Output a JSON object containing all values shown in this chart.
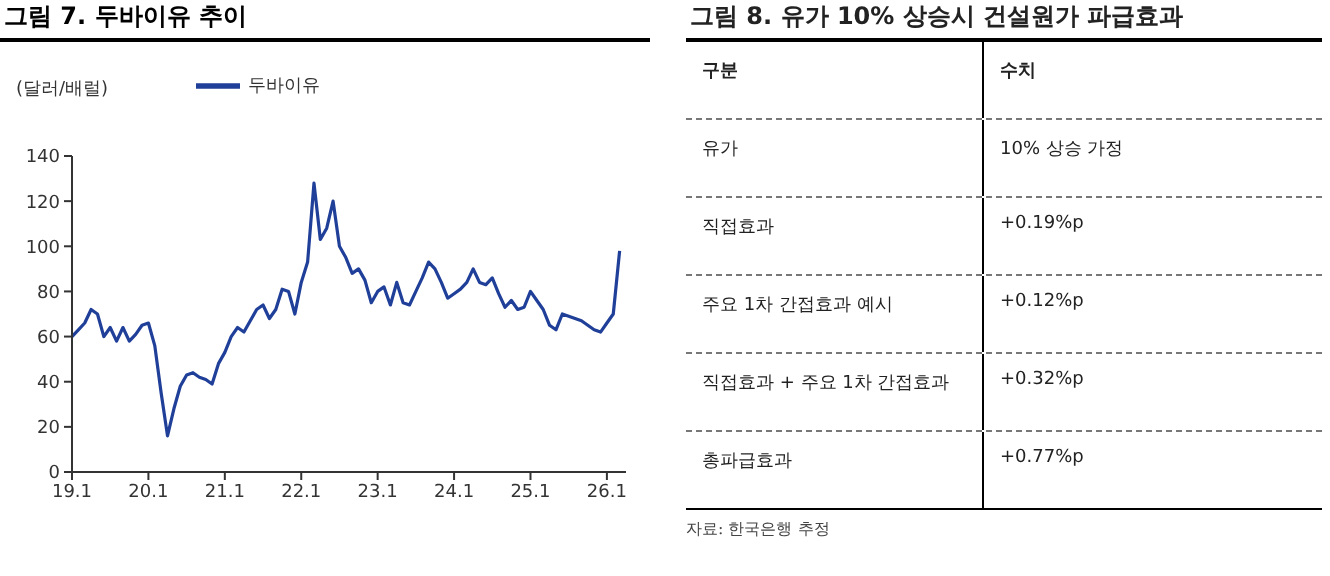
{
  "chart_data": [
    {
      "type": "line",
      "title": "그림 7. 두바이유 추이",
      "ylabel": "(달러/배럴)",
      "legend": "top left",
      "grid": false,
      "marker": "none",
      "line_style": "solid",
      "ylim": [
        0,
        140
      ],
      "yticks": [
        0,
        20,
        40,
        60,
        80,
        100,
        120,
        140
      ],
      "categories": [
        "19.1",
        null,
        null,
        null,
        null,
        null,
        null,
        null,
        null,
        null,
        null,
        null,
        "20.1",
        null,
        null,
        null,
        null,
        null,
        null,
        null,
        null,
        null,
        null,
        null,
        "21.1",
        null,
        null,
        null,
        null,
        null,
        null,
        null,
        null,
        null,
        null,
        null,
        "22.1",
        null,
        null,
        null,
        null,
        null,
        null,
        null,
        null,
        null,
        null,
        null,
        "23.1",
        null,
        null,
        null,
        null,
        null,
        null,
        null,
        null,
        null,
        null,
        null,
        "24.1",
        null,
        null,
        null,
        null,
        null,
        null,
        null,
        null,
        null,
        null,
        null,
        "25.1",
        null,
        null,
        null,
        null,
        null,
        null,
        null,
        null,
        null,
        null,
        null,
        "26.1",
        null,
        null
      ],
      "series": [
        {
          "name": "두바이유",
          "color": "#1f3f99",
          "values": [
            60,
            63,
            66,
            72,
            70,
            60,
            64,
            58,
            64,
            58,
            61,
            65,
            66,
            56,
            35,
            16,
            28,
            38,
            43,
            44,
            42,
            41,
            39,
            48,
            53,
            60,
            64,
            62,
            67,
            72,
            74,
            68,
            72,
            81,
            80,
            70,
            84,
            93,
            128,
            103,
            108,
            120,
            100,
            95,
            88,
            90,
            85,
            75,
            80,
            82,
            74,
            84,
            75,
            74,
            80,
            86,
            93,
            90,
            84,
            77,
            79,
            81,
            84,
            90,
            84,
            83,
            86,
            79,
            73,
            76,
            72,
            73,
            80,
            76,
            72,
            65,
            63,
            70,
            69,
            68,
            67,
            65,
            63,
            62,
            66,
            70,
            98
          ]
        }
      ]
    },
    {
      "type": "other",
      "title": "그림 8. 유가 10% 상승시 건설원가 파급효과",
      "annotations": [
        "구분",
        "수치",
        "유가",
        "10% 상승 가정",
        "직접효과",
        "+0.19%p",
        "주요 1차 간접효과 예시",
        "+0.12%p",
        "직접효과 + 주요 1차 간접효과",
        "+0.32%p",
        "총파급효과",
        "+0.77%p",
        "자료: 한국은행 추정"
      ]
    }
  ]
}
